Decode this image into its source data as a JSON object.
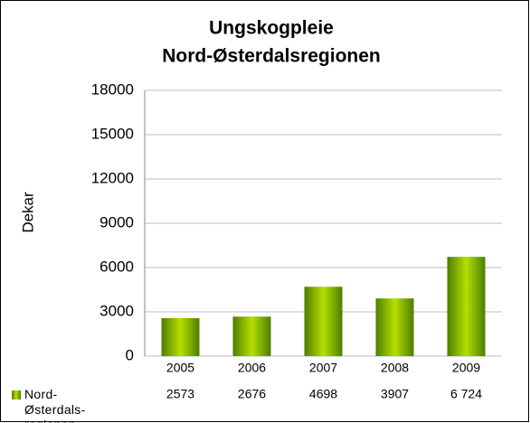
{
  "chart_data": {
    "type": "bar",
    "title": [
      "Ungskogpleie",
      "Nord-Østerdalsregionen"
    ],
    "y_label": "Dekar",
    "categories": [
      "2005",
      "2006",
      "2007",
      "2008",
      "2009"
    ],
    "series": [
      {
        "name": "Nord-Østerdals-regionen",
        "color": "#8cbf00",
        "values": [
          2573,
          2676,
          4698,
          3907,
          6724
        ],
        "value_labels": [
          "2573",
          "2676",
          "4698",
          "3907",
          "6 724"
        ]
      }
    ],
    "ylim": [
      0,
      18000
    ],
    "yticks": [
      0,
      3000,
      6000,
      9000,
      12000,
      15000,
      18000
    ],
    "grid": true
  }
}
